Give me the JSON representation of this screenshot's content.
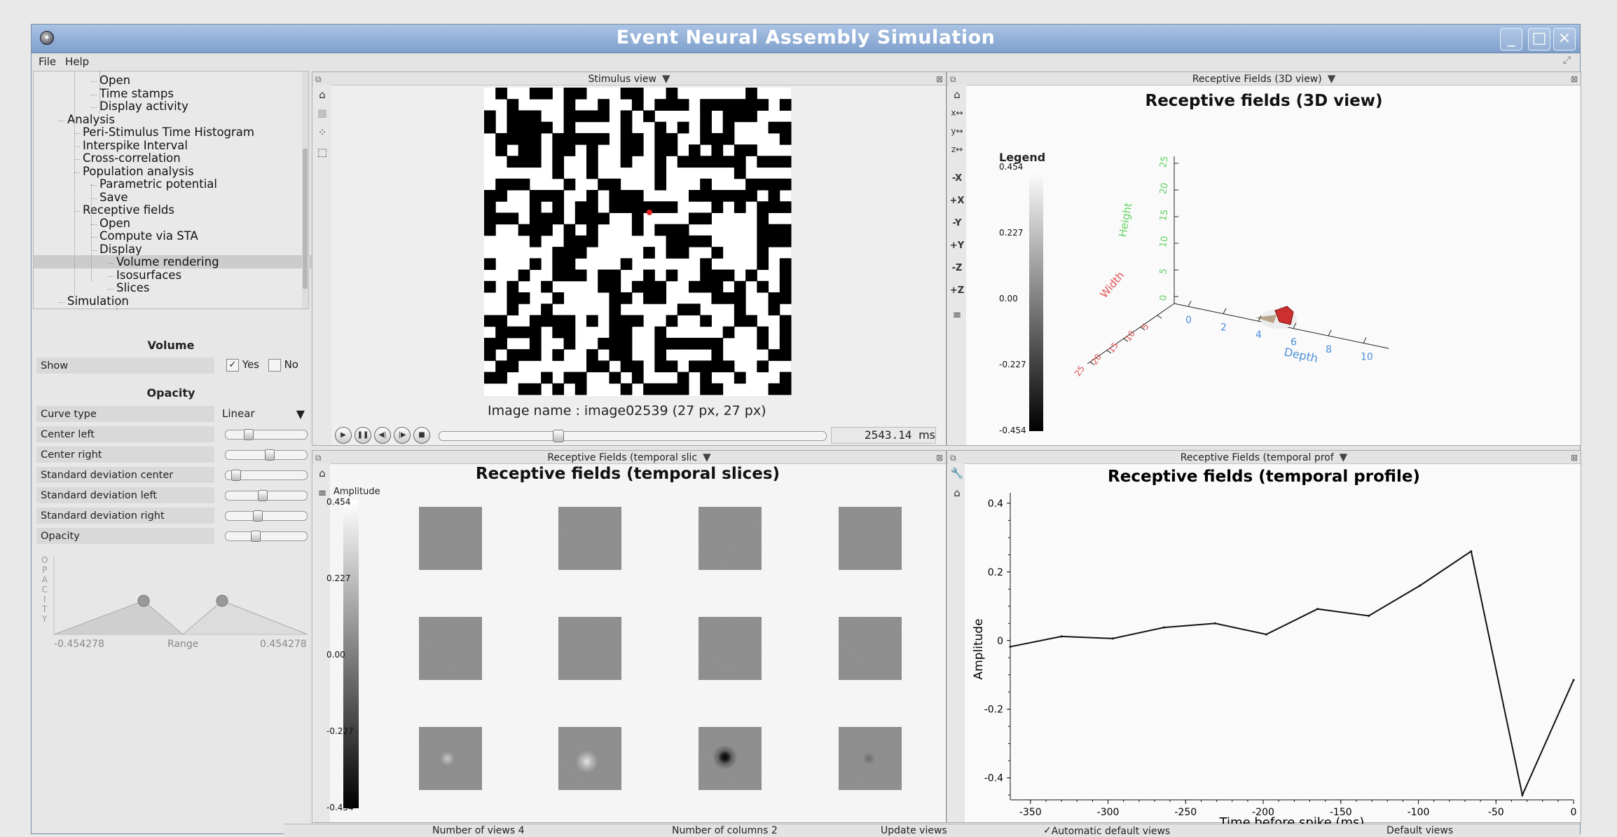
{
  "window": {
    "title": "Event Neural Assembly Simulation"
  },
  "menu": [
    "File",
    "Help"
  ],
  "tree": [
    {
      "label": "Open",
      "level": 3
    },
    {
      "label": "Time stamps",
      "level": 3
    },
    {
      "label": "Display activity",
      "level": 3
    },
    {
      "label": "Analysis",
      "level": 1
    },
    {
      "label": "Peri-Stimulus Time Histogram",
      "level": 2
    },
    {
      "label": "Interspike Interval",
      "level": 2
    },
    {
      "label": "Cross-correlation",
      "level": 2
    },
    {
      "label": "Population analysis",
      "level": 2
    },
    {
      "label": "Parametric potential",
      "level": 3
    },
    {
      "label": "Save",
      "level": 3
    },
    {
      "label": "Receptive fields",
      "level": 2
    },
    {
      "label": "Open",
      "level": 3
    },
    {
      "label": "Compute via STA",
      "level": 3
    },
    {
      "label": "Display",
      "level": 3
    },
    {
      "label": "Volume rendering",
      "level": 4,
      "selected": true
    },
    {
      "label": "Isosurfaces",
      "level": 4
    },
    {
      "label": "Slices",
      "level": 4
    },
    {
      "label": "Simulation",
      "level": 1
    }
  ],
  "props": {
    "volume_title": "Volume",
    "show_label": "Show",
    "yes_label": "Yes",
    "no_label": "No",
    "yes_checked": true,
    "opacity_title": "Opacity",
    "curve_type_label": "Curve type",
    "curve_type_value": "Linear",
    "sliders": [
      {
        "label": "Center left",
        "value": 0.25
      },
      {
        "label": "Center right",
        "value": 0.55
      },
      {
        "label": "Standard deviation center",
        "value": 0.08
      },
      {
        "label": "Standard deviation left",
        "value": 0.45
      },
      {
        "label": "Standard deviation right",
        "value": 0.38
      },
      {
        "label": "Opacity",
        "value": 0.35
      }
    ],
    "curve_axis_letters": [
      "O",
      "P",
      "A",
      "C",
      "I",
      "T",
      "Y"
    ],
    "range_min": "-0.454278",
    "range_label": "Range",
    "range_max": "0.454278"
  },
  "stimulus": {
    "header": "Stimulus view",
    "image_name": "Image name : image02539 (27 px, 27 px)",
    "time_value": "2543.14",
    "time_unit": "ms",
    "progress": 0.3
  },
  "rf3d": {
    "header": "Receptive Fields (3D view)",
    "title": "Receptive fields (3D view)",
    "legend_title": "Legend",
    "legend_ticks": [
      "0.454",
      "0.227",
      "0.00",
      "-0.227",
      "-0.454"
    ],
    "height_label": "Height",
    "height_ticks": [
      "25",
      "20",
      "15",
      "10",
      "5",
      "0"
    ],
    "width_label": "Width",
    "width_ticks": [
      "5",
      "10",
      "15",
      "20",
      "25"
    ],
    "depth_label": "Depth",
    "depth_ticks": [
      "0",
      "2",
      "4",
      "6",
      "8",
      "10"
    ],
    "nav_buttons": [
      "-X",
      "+X",
      "-Y",
      "+Y",
      "-Z",
      "+Z"
    ],
    "colors": {
      "height": "#5fd25f",
      "width": "#e05050",
      "depth": "#4a90d9"
    }
  },
  "slices": {
    "header": "Receptive Fields (temporal slic",
    "title": "Receptive fields (temporal slices)",
    "colorbar_title": "Amplitude",
    "colorbar_ticks": [
      "0.454",
      "0.227",
      "0.00",
      "-0.227",
      "-0.454"
    ]
  },
  "profile": {
    "header": "Receptive Fields (temporal prof",
    "title": "Receptive fields (temporal profile)"
  },
  "chart_data": {
    "type": "line",
    "title": "Receptive fields (temporal profile)",
    "xlabel": "Time before spike (ms)",
    "ylabel": "Amplitude",
    "xlim": [
      -363,
      0
    ],
    "ylim": [
      -0.46,
      0.41
    ],
    "xticks": [
      -350,
      -300,
      -250,
      -200,
      -150,
      -100,
      -50,
      0
    ],
    "yticks": [
      0.4,
      0.2,
      0,
      -0.2,
      -0.4
    ],
    "x": [
      -363,
      -330,
      -297,
      -264,
      -231,
      -198,
      -165,
      -132,
      -99,
      -66,
      -33,
      0
    ],
    "y": [
      -0.018,
      0.012,
      0.006,
      0.038,
      0.05,
      0.018,
      0.092,
      0.072,
      0.16,
      0.26,
      -0.45,
      -0.115
    ]
  },
  "bottom": {
    "num_views": "Number of views 4",
    "num_columns": "Number of columns 2",
    "update_views": "Update views",
    "auto_default": "Automatic default views",
    "default_views": "Default views"
  }
}
